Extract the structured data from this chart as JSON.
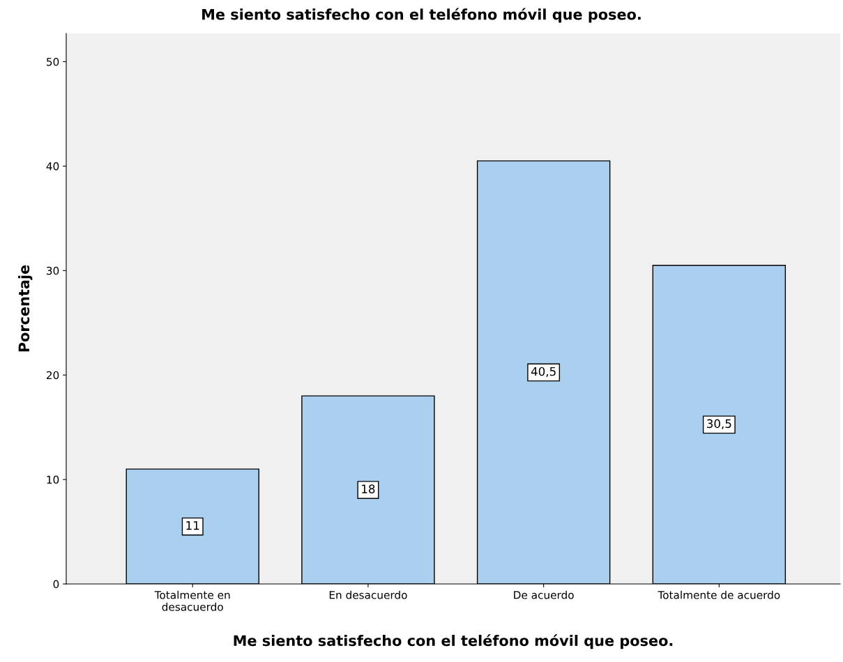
{
  "chart_data": {
    "type": "bar",
    "title": "Me siento satisfecho con el teléfono móvil que poseo.",
    "xlabel": "Me siento satisfecho con el teléfono móvil que poseo.",
    "ylabel": "Porcentaje",
    "categories": [
      "Totalmente en\ndesacuerdo",
      "En desacuerdo",
      "De acuerdo",
      "Totalmente de acuerdo"
    ],
    "values": [
      11,
      18,
      40.5,
      30.5
    ],
    "value_labels": [
      "11",
      "18",
      "40,5",
      "30,5"
    ],
    "color": "#abcfee",
    "ylim": [
      0,
      52.7
    ],
    "yticks": [
      0,
      10,
      20,
      30,
      40,
      50
    ],
    "grid": false,
    "legend": false
  }
}
